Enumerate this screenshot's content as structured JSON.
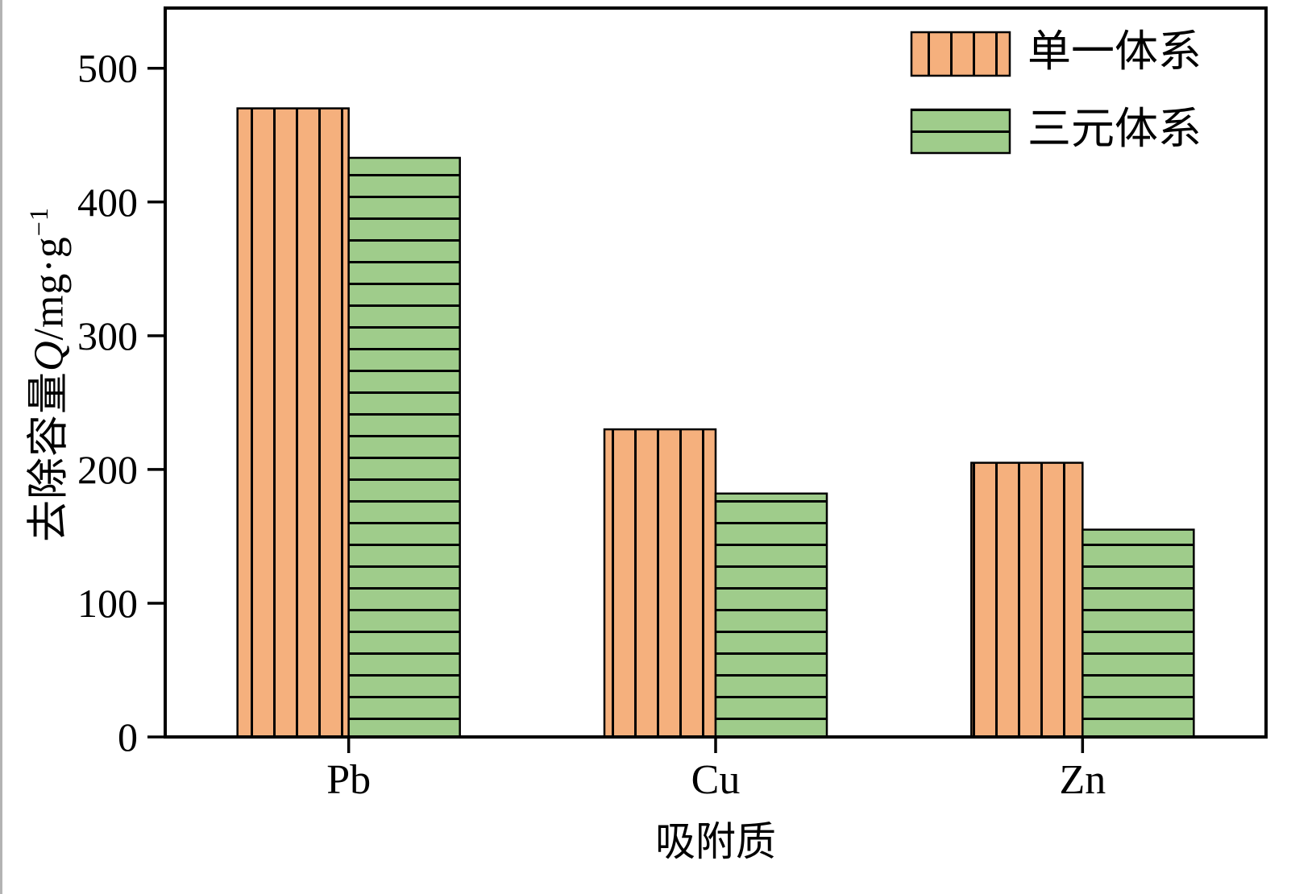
{
  "chart_data": {
    "type": "bar",
    "title": "",
    "categories": [
      "Pb",
      "Cu",
      "Zn"
    ],
    "series": [
      {
        "name": "单一体系",
        "values": [
          470,
          230,
          205
        ],
        "color": "#F5B07D",
        "hatch": "vertical"
      },
      {
        "name": "三元体系",
        "values": [
          433,
          182,
          155
        ],
        "color": "#9FCC8B",
        "hatch": "horizontal"
      }
    ],
    "xlabel": "吸附质",
    "ylabel": "去除容量Q/mg·g⁻¹",
    "ylabel_parts": {
      "prefix": "去除容量",
      "italic_q": "Q",
      "unit": "/mg·g",
      "superscript": "−1"
    },
    "yticks": [
      0,
      100,
      200,
      300,
      400,
      500
    ],
    "ylim": [
      0,
      545
    ],
    "grid": false,
    "legend_position": "top-right",
    "axis_color": "#000000",
    "hatch_color": "#000000"
  }
}
